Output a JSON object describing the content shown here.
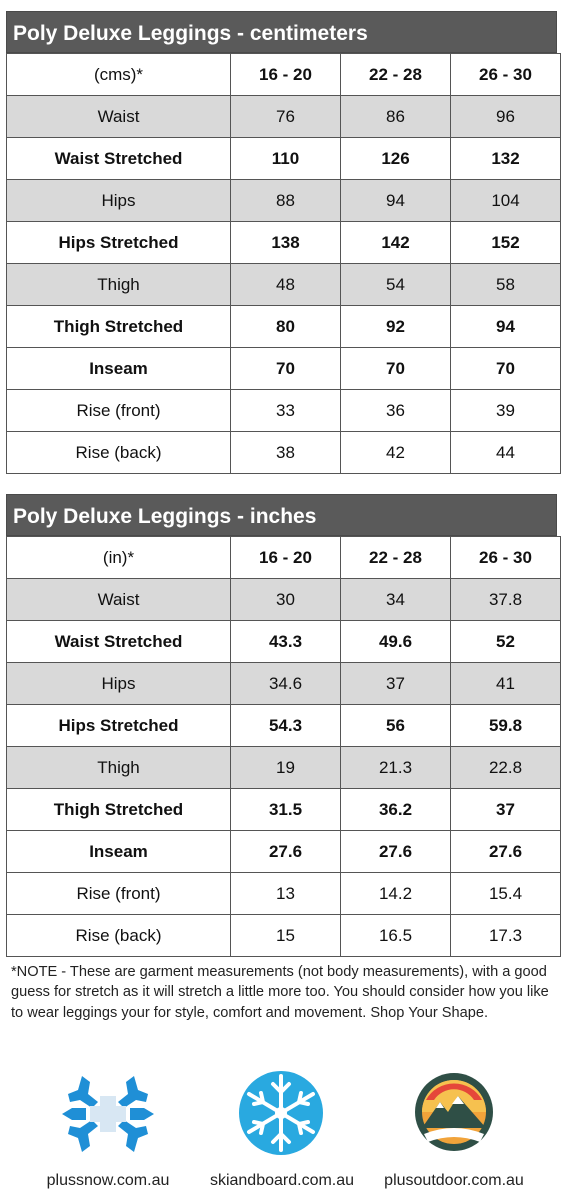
{
  "tables": [
    {
      "title": "Poly Deluxe Leggings - centimeters",
      "header": [
        "(cms)*",
        "16 - 20",
        "22 - 28",
        "26 - 30"
      ],
      "rows": [
        {
          "label": "Waist",
          "values": [
            "76",
            "86",
            "96"
          ],
          "style": "gray"
        },
        {
          "label": "Waist Stretched",
          "values": [
            "110",
            "126",
            "132"
          ],
          "style": "bold"
        },
        {
          "label": "Hips",
          "values": [
            "88",
            "94",
            "104"
          ],
          "style": "gray"
        },
        {
          "label": "Hips Stretched",
          "values": [
            "138",
            "142",
            "152"
          ],
          "style": "bold"
        },
        {
          "label": "Thigh",
          "values": [
            "48",
            "54",
            "58"
          ],
          "style": "gray"
        },
        {
          "label": "Thigh Stretched",
          "values": [
            "80",
            "92",
            "94"
          ],
          "style": "bold"
        },
        {
          "label": "Inseam",
          "values": [
            "70",
            "70",
            "70"
          ],
          "style": "bold"
        },
        {
          "label": "Rise (front)",
          "values": [
            "33",
            "36",
            "39"
          ],
          "style": "plain"
        },
        {
          "label": "Rise (back)",
          "values": [
            "38",
            "42",
            "44"
          ],
          "style": "plain"
        }
      ]
    },
    {
      "title": "Poly Deluxe Leggings - inches",
      "header": [
        "(in)*",
        "16 - 20",
        "22 - 28",
        "26 - 30"
      ],
      "rows": [
        {
          "label": "Waist",
          "values": [
            "30",
            "34",
            "37.8"
          ],
          "style": "gray"
        },
        {
          "label": "Waist Stretched",
          "values": [
            "43.3",
            "49.6",
            "52"
          ],
          "style": "bold"
        },
        {
          "label": "Hips",
          "values": [
            "34.6",
            "37",
            "41"
          ],
          "style": "gray"
        },
        {
          "label": "Hips Stretched",
          "values": [
            "54.3",
            "56",
            "59.8"
          ],
          "style": "bold"
        },
        {
          "label": "Thigh",
          "values": [
            "19",
            "21.3",
            "22.8"
          ],
          "style": "gray"
        },
        {
          "label": "Thigh Stretched",
          "values": [
            "31.5",
            "36.2",
            "37"
          ],
          "style": "bold"
        },
        {
          "label": "Inseam",
          "values": [
            "27.6",
            "27.6",
            "27.6"
          ],
          "style": "bold"
        },
        {
          "label": "Rise (front)",
          "values": [
            "13",
            "14.2",
            "15.4"
          ],
          "style": "plain"
        },
        {
          "label": "Rise (back)",
          "values": [
            "15",
            "16.5",
            "17.3"
          ],
          "style": "plain"
        }
      ]
    }
  ],
  "note": "*NOTE - These are garment measurements (not body measurements), with a good guess for stretch as it will stretch a little more too. You should consider how you like to wear leggings your for style, comfort and movement. Shop Your Shape.",
  "logos": [
    {
      "caption": "plussnow.com.au",
      "icon": "snowflake-plus-icon",
      "color": "#1f8fd6"
    },
    {
      "caption": "skiandboard.com.au",
      "icon": "snowflake-icon",
      "color": "#29a9e0"
    },
    {
      "caption": "plusoutdoor.com.au",
      "icon": "mountain-sunset-icon",
      "color": "#2f4f46"
    }
  ],
  "colors": {
    "title_bar": "#5a5a5a",
    "gray_row": "#d9d9d9"
  }
}
